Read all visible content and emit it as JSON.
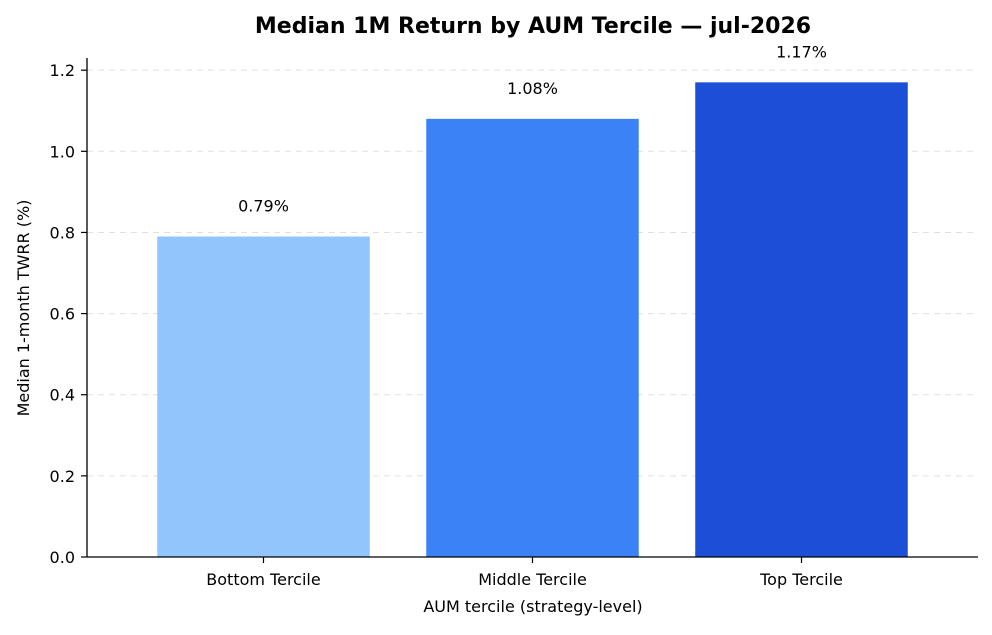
{
  "chart_data": {
    "type": "bar",
    "title": "Median 1M Return by AUM Tercile — jul-2026",
    "xlabel": "AUM tercile (strategy-level)",
    "ylabel": "Median 1-month TWRR (%)",
    "categories": [
      "Bottom Tercile",
      "Middle Tercile",
      "Top Tercile"
    ],
    "values": [
      0.79,
      1.08,
      1.17
    ],
    "data_labels": [
      "0.79%",
      "1.08%",
      "1.17%"
    ],
    "colors": [
      "#93c5fd",
      "#3b82f6",
      "#1d4ed8"
    ],
    "ylim": [
      0,
      1.23
    ],
    "yticks": [
      0.0,
      0.2,
      0.4,
      0.6,
      0.8,
      1.0,
      1.2
    ],
    "ytick_labels": [
      "0.0",
      "0.2",
      "0.4",
      "0.6",
      "0.8",
      "1.0",
      "1.2"
    ],
    "grid": "y-dashed",
    "legend": "none"
  }
}
